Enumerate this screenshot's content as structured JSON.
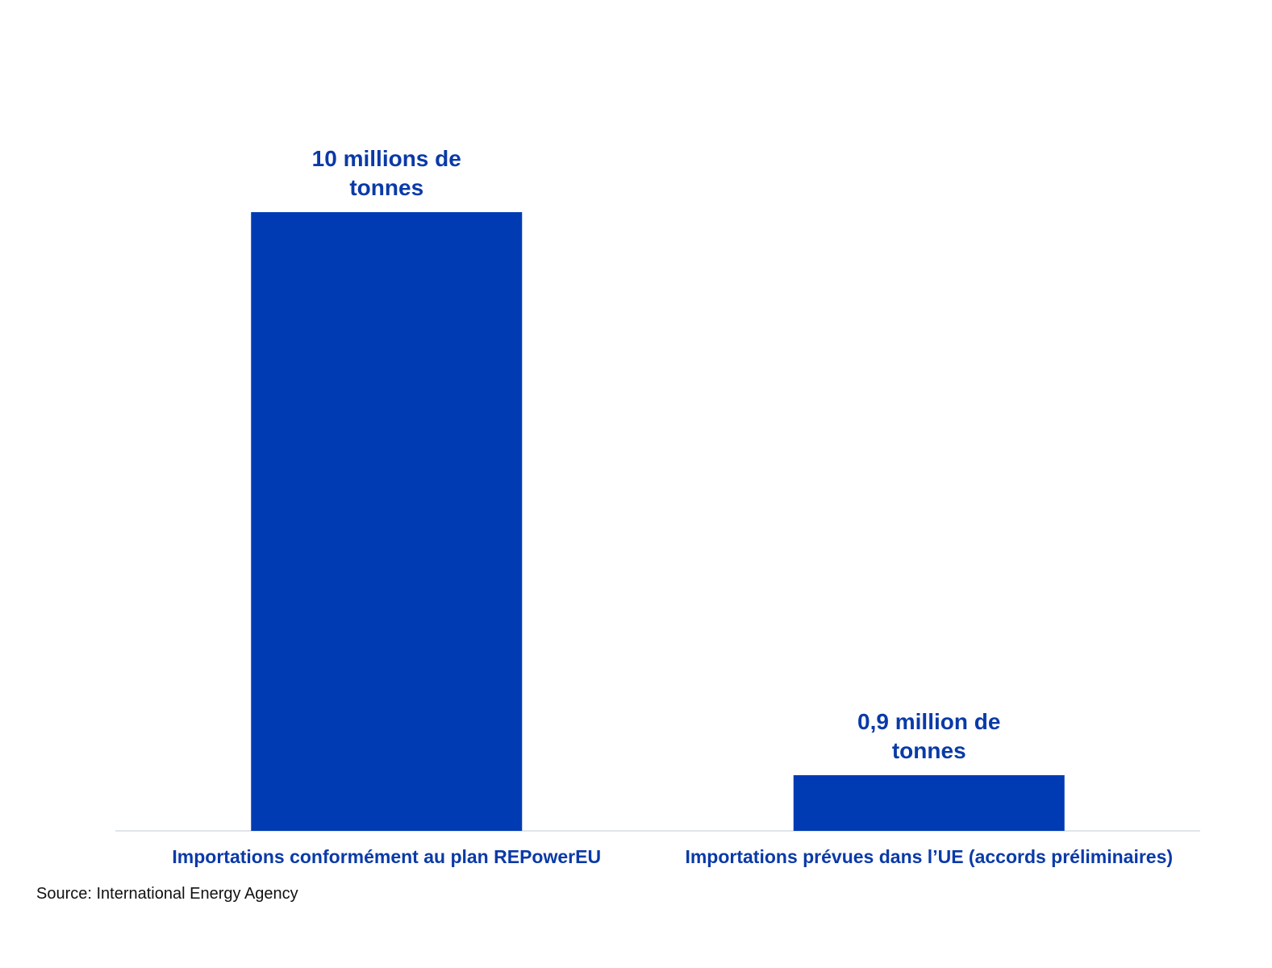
{
  "chart_data": {
    "type": "bar",
    "categories": [
      "Importations conformément au plan REPowerEU",
      "Importations prévues dans l’UE (accords préliminaires)"
    ],
    "values": [
      10,
      0.9
    ],
    "value_labels": [
      "10 millions de tonnes",
      "0,9 million de tonnes"
    ],
    "color": "#003bb3",
    "label_color": "#0a3aa8",
    "source": "Source: International Energy Agency"
  }
}
